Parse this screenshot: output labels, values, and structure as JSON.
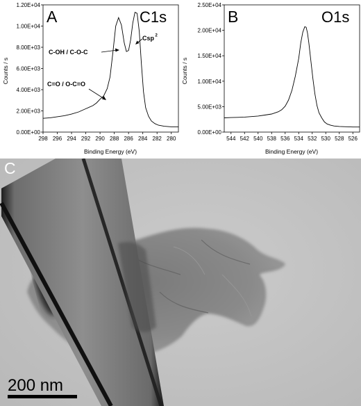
{
  "chart_data": [
    {
      "panel": "A",
      "type": "line",
      "title": "C1s",
      "xlabel": "Binding Energy (eV)",
      "ylabel": "Counts / s",
      "xlim": [
        298,
        279
      ],
      "ylim": [
        0,
        12000
      ],
      "x_ticks": [
        "298",
        "296",
        "294",
        "292",
        "290",
        "288",
        "286",
        "284",
        "282",
        "280"
      ],
      "y_ticks": [
        "0.00E+00",
        "2.00E+03",
        "4.00E+03",
        "6.00E+03",
        "8.00E+03",
        "1.00E+04",
        "1.20E+04"
      ],
      "annotations": [
        {
          "text": "C-OH / C-O-C",
          "x": 286.3,
          "y": 7700
        },
        {
          "text": "Csp",
          "sup": "2",
          "x": 284.6,
          "y": 8700
        },
        {
          "text": "C=O / O-C=O",
          "x": 288.5,
          "y": 2800
        }
      ],
      "x": [
        298,
        297,
        296,
        295,
        294,
        293,
        292,
        291,
        290.5,
        290,
        289.5,
        289,
        288.6,
        288.2,
        287.8,
        287.4,
        287.0,
        286.6,
        286.3,
        286.0,
        285.7,
        285.4,
        285.1,
        284.8,
        284.5,
        284.2,
        283.9,
        283.6,
        283.2,
        282.8,
        282.3,
        281.8,
        281,
        280,
        279
      ],
      "y": [
        1300,
        1350,
        1450,
        1550,
        1700,
        1900,
        2200,
        2500,
        2750,
        3100,
        3400,
        4100,
        5200,
        7500,
        10000,
        10800,
        10100,
        8400,
        7600,
        7700,
        8700,
        10300,
        11300,
        11200,
        9500,
        6500,
        3800,
        2300,
        1500,
        1050,
        800,
        650,
        550,
        500,
        500
      ]
    },
    {
      "panel": "B",
      "type": "line",
      "title": "O1s",
      "xlabel": "Binding Energy (eV)",
      "ylabel": "Counts / s",
      "xlim": [
        545,
        525
      ],
      "ylim": [
        0,
        25000
      ],
      "x_ticks": [
        "544",
        "542",
        "540",
        "538",
        "536",
        "534",
        "532",
        "530",
        "528",
        "526"
      ],
      "y_ticks": [
        "0.00E+00",
        "5.00E+03",
        "1.00E+04",
        "1.50E+04",
        "2.00E+04",
        "2.50E+04"
      ],
      "x": [
        545,
        544,
        543,
        542,
        541,
        540,
        539,
        538,
        537,
        536.5,
        536,
        535.5,
        535,
        534.5,
        534,
        533.7,
        533.4,
        533.1,
        532.9,
        532.7,
        532.5,
        532.2,
        531.9,
        531.6,
        531.3,
        531,
        530.6,
        530.2,
        529.8,
        529.3,
        528.8,
        528,
        527,
        526,
        525
      ],
      "y": [
        2800,
        2850,
        2900,
        2950,
        3050,
        3150,
        3350,
        3550,
        4000,
        4400,
        5100,
        6300,
        8200,
        11000,
        14500,
        17500,
        19600,
        20700,
        20600,
        19500,
        17500,
        14000,
        10500,
        7500,
        5200,
        3800,
        2800,
        2000,
        1600,
        1350,
        1200,
        1100,
        1050,
        1000,
        1000
      ]
    }
  ],
  "panel_c": {
    "label": "C",
    "scale_bar_text": "200 nm"
  },
  "colors": {
    "axis": "#000000",
    "curve": "#000000",
    "micrograph_bg": "#c4c4c4",
    "scale_bar": "#000000"
  }
}
